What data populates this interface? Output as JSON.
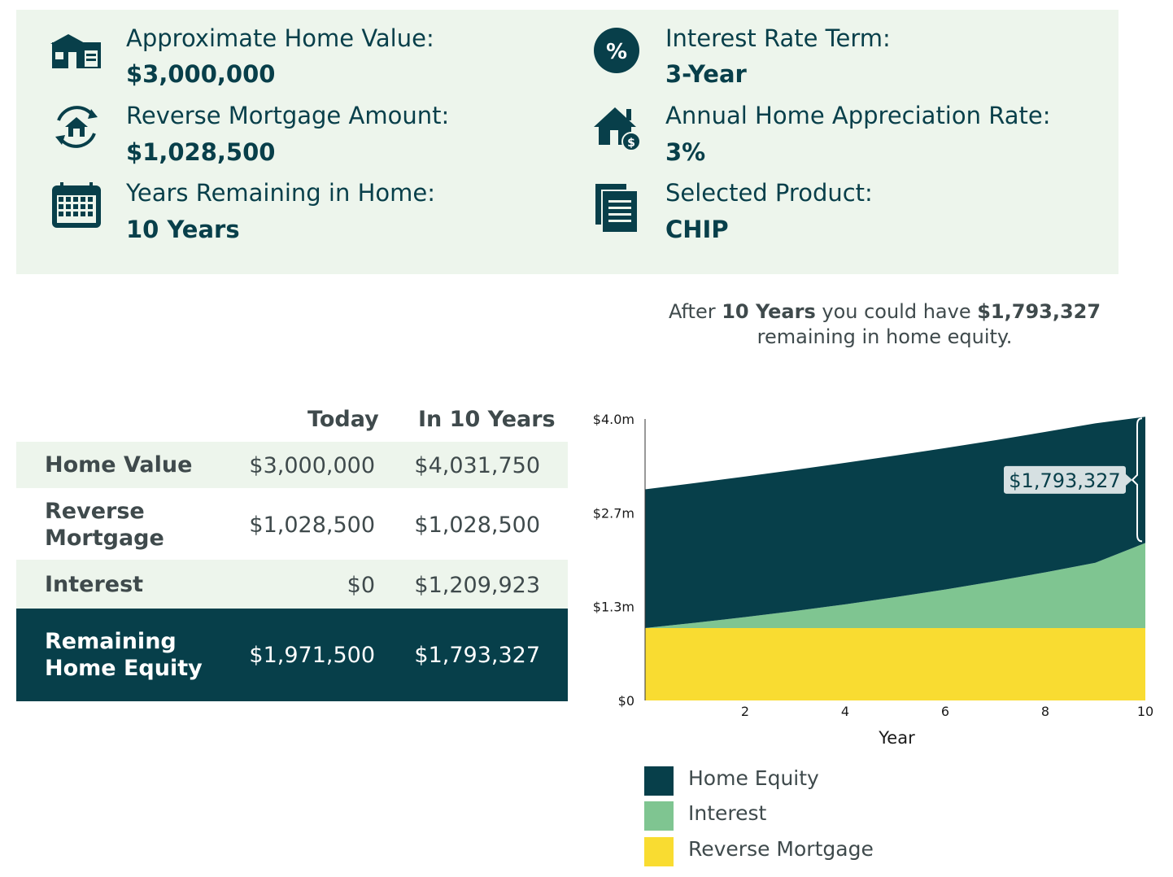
{
  "summary": {
    "home_value": {
      "label": "Approximate Home Value:",
      "value": "$3,000,000",
      "icon": "house-icon"
    },
    "reverse_mortgage": {
      "label": "Reverse Mortgage Amount:",
      "value": "$1,028,500",
      "icon": "house-cycle-icon"
    },
    "years_remaining": {
      "label": "Years Remaining in Home:",
      "value": "10 Years",
      "icon": "calendar-icon"
    },
    "interest_term": {
      "label": "Interest Rate Term:",
      "value": "3-Year",
      "icon": "percent-icon"
    },
    "appreciation": {
      "label": "Annual Home Appreciation Rate:",
      "value": "3%",
      "icon": "house-dollar-icon"
    },
    "product": {
      "label": "Selected Product:",
      "value": "CHIP",
      "icon": "document-icon"
    }
  },
  "headline": {
    "p1": "After ",
    "years": "10 Years",
    "p2": " you could have ",
    "amount": "$1,793,327",
    "p3": "remaining in home equity."
  },
  "table": {
    "col_today": "Today",
    "col_future": "In 10 Years",
    "rows": [
      {
        "label": "Home Value",
        "today": "$3,000,000",
        "future": "$4,031,750"
      },
      {
        "label": "Reverse Mortgage",
        "today": "$1,028,500",
        "future": "$1,028,500"
      },
      {
        "label": "Interest",
        "today": "$0",
        "future": "$1,209,923"
      },
      {
        "label": "Remaining Home Equity",
        "today": "$1,971,500",
        "future": "$1,793,327"
      }
    ]
  },
  "colors": {
    "home_equity": "#073f4a",
    "interest": "#7fc591",
    "reverse_mortgage": "#f9dc31",
    "summary_bg": "#edf5ec",
    "row_light": "#edf5ec"
  },
  "chart_data": {
    "type": "area",
    "stacked": true,
    "xlabel": "Year",
    "ylabel": "",
    "x": [
      0,
      1,
      2,
      3,
      4,
      5,
      6,
      7,
      8,
      9,
      10
    ],
    "xticks": [
      "2",
      "4",
      "6",
      "8",
      "10"
    ],
    "xtick_values": [
      2,
      4,
      6,
      8,
      10
    ],
    "xlim": [
      0,
      10
    ],
    "yticks": [
      "$0",
      "$1.3m",
      "$2.7m",
      "$4.0m"
    ],
    "ytick_values": [
      0,
      1333333,
      2666667,
      4000000
    ],
    "ylim": [
      0,
      4000000
    ],
    "series": [
      {
        "name": "Reverse Mortgage",
        "values": [
          1028500,
          1028500,
          1028500,
          1028500,
          1028500,
          1028500,
          1028500,
          1028500,
          1028500,
          1028500,
          1028500
        ]
      },
      {
        "name": "Interest",
        "values": [
          0,
          75000,
          156000,
          243000,
          337000,
          439000,
          548000,
          666000,
          792000,
          928000,
          1209923
        ]
      },
      {
        "name": "Home Equity",
        "values": [
          1971500,
          1986500,
          1998000,
          2006000,
          2011000,
          2012000,
          2010000,
          2004000,
          1996000,
          1982000,
          1793327
        ]
      }
    ],
    "annotation": {
      "x": 10,
      "value": "$1,793,327"
    },
    "legend": [
      "Home Equity",
      "Interest",
      "Reverse Mortgage"
    ],
    "legend_position": "bottom",
    "grid": false
  }
}
